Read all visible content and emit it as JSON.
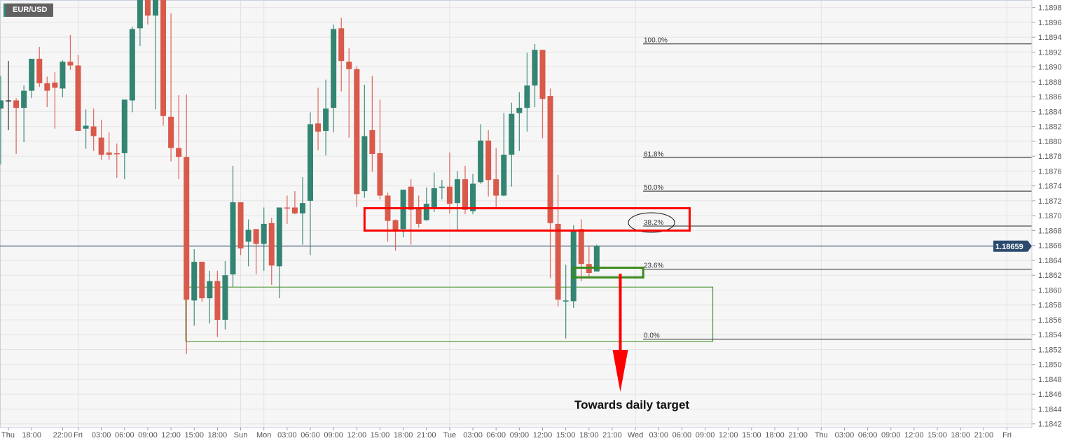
{
  "symbol": "EUR/USD",
  "annotation_text": "Towards daily target",
  "colors": {
    "up": "#338472",
    "down": "#d9594b",
    "neutral": "#222222",
    "price_line": "#2c4a6e",
    "zone_red": "#ff0000",
    "zone_green": "#3a8a1a",
    "arrow": "#ff0000"
  },
  "chart_data": {
    "type": "candlestick",
    "title": "EUR/USD",
    "ylim": [
      1.1842,
      1.1899
    ],
    "y_ticks": [
      "1.1842",
      "1.1844",
      "1.1846",
      "1.1848",
      "1.1850",
      "1.1852",
      "1.1854",
      "1.1856",
      "1.1858",
      "1.1860",
      "1.1862",
      "1.1864",
      "1.1866",
      "1.1868",
      "1.1870",
      "1.1872",
      "1.1874",
      "1.1876",
      "1.1878",
      "1.1880",
      "1.1882",
      "1.1884",
      "1.1886",
      "1.1888",
      "1.1890",
      "1.1892",
      "1.1894",
      "1.1896",
      "1.1898"
    ],
    "x_labels": [
      {
        "label": "Thu",
        "slot": 1
      },
      {
        "label": "18:00",
        "slot": 4
      },
      {
        "label": "22:00",
        "slot": 8
      },
      {
        "label": "Fri",
        "slot": 10
      },
      {
        "label": "03:00",
        "slot": 13
      },
      {
        "label": "06:00",
        "slot": 16
      },
      {
        "label": "09:00",
        "slot": 19
      },
      {
        "label": "12:00",
        "slot": 22
      },
      {
        "label": "15:00",
        "slot": 25
      },
      {
        "label": "18:00",
        "slot": 28
      },
      {
        "label": "Sun",
        "slot": 31
      },
      {
        "label": "Mon",
        "slot": 34
      },
      {
        "label": "03:00",
        "slot": 37
      },
      {
        "label": "06:00",
        "slot": 40
      },
      {
        "label": "09:00",
        "slot": 43
      },
      {
        "label": "12:00",
        "slot": 46
      },
      {
        "label": "15:00",
        "slot": 49
      },
      {
        "label": "18:00",
        "slot": 52
      },
      {
        "label": "21:00",
        "slot": 55
      },
      {
        "label": "Tue",
        "slot": 58
      },
      {
        "label": "03:00",
        "slot": 61
      },
      {
        "label": "06:00",
        "slot": 64
      },
      {
        "label": "09:00",
        "slot": 67
      },
      {
        "label": "12:00",
        "slot": 70
      },
      {
        "label": "15:00",
        "slot": 73
      },
      {
        "label": "18:00",
        "slot": 76
      },
      {
        "label": "21:00",
        "slot": 79
      },
      {
        "label": "Wed",
        "slot": 82
      },
      {
        "label": "03:00",
        "slot": 85
      },
      {
        "label": "06:00",
        "slot": 88
      },
      {
        "label": "09:00",
        "slot": 91
      },
      {
        "label": "12:00",
        "slot": 94
      },
      {
        "label": "15:00",
        "slot": 97
      },
      {
        "label": "18:00",
        "slot": 100
      },
      {
        "label": "21:00",
        "slot": 103
      },
      {
        "label": "Thu",
        "slot": 106
      },
      {
        "label": "03:00",
        "slot": 109
      },
      {
        "label": "06:00",
        "slot": 112
      },
      {
        "label": "09:00",
        "slot": 115
      },
      {
        "label": "12:00",
        "slot": 118
      },
      {
        "label": "15:00",
        "slot": 121
      },
      {
        "label": "18:00",
        "slot": 124
      },
      {
        "label": "21:00",
        "slot": 127
      },
      {
        "label": "Fri",
        "slot": 130
      }
    ],
    "day_separator_slots": [
      10,
      31,
      34,
      58,
      82,
      106,
      130
    ],
    "neutral_indices": [
      1
    ],
    "ohlc": [
      [
        1.18844,
        1.18888,
        1.18769,
        1.18855
      ],
      [
        1.18855,
        1.18908,
        1.18815,
        1.18855
      ],
      [
        1.18855,
        1.18858,
        1.18783,
        1.18845
      ],
      [
        1.18845,
        1.18875,
        1.18799,
        1.18868
      ],
      [
        1.18868,
        1.18911,
        1.18858,
        1.18911
      ],
      [
        1.18911,
        1.18927,
        1.18873,
        1.18878
      ],
      [
        1.18878,
        1.18887,
        1.18846,
        1.18868
      ],
      [
        1.18879,
        1.18893,
        1.18817,
        1.18872
      ],
      [
        1.18871,
        1.18909,
        1.18859,
        1.18907
      ],
      [
        1.18907,
        1.18943,
        1.18896,
        1.18902
      ],
      [
        1.18902,
        1.18916,
        1.18814,
        1.18814
      ],
      [
        1.18817,
        1.18843,
        1.1879,
        1.18821
      ],
      [
        1.1882,
        1.18844,
        1.18787,
        1.18807
      ],
      [
        1.18805,
        1.18829,
        1.18775,
        1.18782
      ],
      [
        1.18785,
        1.18812,
        1.18775,
        1.18782
      ],
      [
        1.18784,
        1.18797,
        1.18751,
        1.18783
      ],
      [
        1.18784,
        1.18856,
        1.18749,
        1.18856
      ],
      [
        1.18855,
        1.18954,
        1.18839,
        1.18951
      ],
      [
        1.18952,
        1.19018,
        1.18928,
        1.19009
      ],
      [
        1.19,
        1.19009,
        1.18957,
        1.18969
      ],
      [
        1.18969,
        1.19,
        1.18843,
        1.18995
      ],
      [
        1.18995,
        1.19,
        1.18821,
        1.18834
      ],
      [
        1.18833,
        1.18972,
        1.18773,
        1.18791
      ],
      [
        1.18791,
        1.18862,
        1.18749,
        1.18779
      ],
      [
        1.18779,
        1.18863,
        1.18514,
        1.18587
      ],
      [
        1.18586,
        1.18655,
        1.18552,
        1.18638
      ],
      [
        1.18638,
        1.18638,
        1.18584,
        1.18589
      ],
      [
        1.18589,
        1.18626,
        1.18555,
        1.18612
      ],
      [
        1.18612,
        1.18626,
        1.18537,
        1.1856
      ],
      [
        1.1856,
        1.18639,
        1.18547,
        1.1862
      ],
      [
        1.18621,
        1.18767,
        1.18604,
        1.18718
      ],
      [
        1.18718,
        1.18718,
        1.18647,
        1.18656
      ],
      [
        1.18665,
        1.18695,
        1.18632,
        1.18681
      ],
      [
        1.18682,
        1.18682,
        1.18621,
        1.18662
      ],
      [
        1.18662,
        1.18711,
        1.18626,
        1.18689
      ],
      [
        1.1869,
        1.18697,
        1.18607,
        1.18633
      ],
      [
        1.18632,
        1.18711,
        1.18589,
        1.18711
      ],
      [
        1.18711,
        1.18727,
        1.18689,
        1.1871
      ],
      [
        1.18711,
        1.18733,
        1.18702,
        1.18703
      ],
      [
        1.18703,
        1.18752,
        1.18661,
        1.18717
      ],
      [
        1.1872,
        1.18839,
        1.18647,
        1.18823
      ],
      [
        1.18824,
        1.18872,
        1.18788,
        1.18813
      ],
      [
        1.18814,
        1.18883,
        1.18781,
        1.18844
      ],
      [
        1.18845,
        1.18957,
        1.18812,
        1.18951
      ],
      [
        1.18952,
        1.18966,
        1.18867,
        1.18908
      ],
      [
        1.18907,
        1.18925,
        1.18805,
        1.18897
      ],
      [
        1.18897,
        1.18901,
        1.18712,
        1.18729
      ],
      [
        1.18733,
        1.18876,
        1.18724,
        1.18807
      ],
      [
        1.18815,
        1.18888,
        1.18759,
        1.18783
      ],
      [
        1.18784,
        1.18856,
        1.18722,
        1.18727
      ],
      [
        1.18727,
        1.18731,
        1.18665,
        1.18693
      ],
      [
        1.18694,
        1.18695,
        1.18653,
        1.18681
      ],
      [
        1.18682,
        1.18735,
        1.18671,
        1.18735
      ],
      [
        1.18739,
        1.18749,
        1.18661,
        1.18708
      ],
      [
        1.18709,
        1.18727,
        1.18684,
        1.18689
      ],
      [
        1.18694,
        1.18738,
        1.18693,
        1.18716
      ],
      [
        1.18711,
        1.18758,
        1.18705,
        1.18737
      ],
      [
        1.18738,
        1.18748,
        1.18722,
        1.18739
      ],
      [
        1.18739,
        1.18785,
        1.18703,
        1.18716
      ],
      [
        1.18717,
        1.1876,
        1.18679,
        1.18749
      ],
      [
        1.18749,
        1.18767,
        1.18702,
        1.18708
      ],
      [
        1.18706,
        1.18756,
        1.18702,
        1.18743
      ],
      [
        1.18745,
        1.18823,
        1.18743,
        1.18801
      ],
      [
        1.18801,
        1.18815,
        1.18726,
        1.18748
      ],
      [
        1.18749,
        1.18791,
        1.18711,
        1.18727
      ],
      [
        1.18727,
        1.18838,
        1.18726,
        1.18782
      ],
      [
        1.18782,
        1.18852,
        1.18739,
        1.18837
      ],
      [
        1.18838,
        1.18866,
        1.18787,
        1.18845
      ],
      [
        1.18845,
        1.18919,
        1.18813,
        1.18875
      ],
      [
        1.18875,
        1.18931,
        1.18846,
        1.18923
      ],
      [
        1.18923,
        1.18923,
        1.18804,
        1.18857
      ],
      [
        1.18861,
        1.18871,
        1.18616,
        1.1869
      ],
      [
        1.18689,
        1.18755,
        1.18578,
        1.18587
      ],
      [
        1.18585,
        1.18634,
        1.18535,
        1.18586
      ],
      [
        1.18585,
        1.18687,
        1.18576,
        1.18679
      ],
      [
        1.18682,
        1.18695,
        1.18612,
        1.18635
      ],
      [
        1.18635,
        1.1866,
        1.18617,
        1.18623
      ],
      [
        1.18625,
        1.18661,
        1.18625,
        1.18659
      ]
    ],
    "current_price": "1.18659",
    "current_price_value": 1.18659,
    "fib_levels": [
      {
        "label": "100.0%",
        "price": 1.18931
      },
      {
        "label": "61.8%",
        "price": 1.18778
      },
      {
        "label": "50.0%",
        "price": 1.18733
      },
      {
        "label": "38.2%",
        "price": 1.18686
      },
      {
        "label": "23.6%",
        "price": 1.18628
      },
      {
        "label": "0.0%",
        "price": 1.18534
      }
    ],
    "highlighted_fib": "38.2%",
    "zones": [
      {
        "name": "resistance-zone",
        "color": "red",
        "price_top": 1.1871,
        "price_bottom": 1.1868,
        "slot_from": 47,
        "slot_to": 89
      },
      {
        "name": "range-zone",
        "color": "green",
        "price_top": 1.18604,
        "price_bottom": 1.18531,
        "slot_from": 23.9,
        "slot_to": 92
      },
      {
        "name": "support-zone",
        "color": "green",
        "price_top": 1.1863,
        "price_bottom": 1.18617,
        "slot_from": 74,
        "slot_to": 83
      }
    ],
    "arrow": {
      "slot": 80,
      "price_from": 1.18622,
      "price_to": 1.18463
    }
  }
}
